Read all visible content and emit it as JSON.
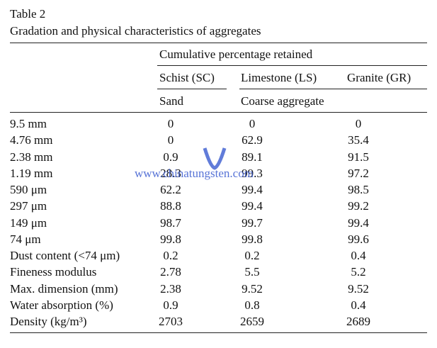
{
  "table": {
    "title": "Table 2",
    "caption": "Gradation and physical characteristics of aggregates",
    "group_header": "Cumulative percentage retained",
    "columns": [
      "Schist (SC)",
      "Limestone (LS)",
      "Granite (GR)"
    ],
    "subheaders": [
      "Sand",
      "Coarse aggregate"
    ],
    "rows": [
      {
        "label": "9.5 mm",
        "values": [
          0,
          0,
          0
        ]
      },
      {
        "label": "4.76 mm",
        "values": [
          0,
          62.9,
          35.4
        ]
      },
      {
        "label": "2.38 mm",
        "values": [
          0.9,
          89.1,
          91.5
        ]
      },
      {
        "label": "1.19 mm",
        "values": [
          28.3,
          99.3,
          97.2
        ]
      },
      {
        "label": "590 μm",
        "values": [
          62.2,
          99.4,
          98.5
        ]
      },
      {
        "label": "297 μm",
        "values": [
          88.8,
          99.4,
          99.2
        ]
      },
      {
        "label": "149 μm",
        "values": [
          98.7,
          99.7,
          99.4
        ]
      },
      {
        "label": "74 μm",
        "values": [
          99.8,
          99.8,
          99.6
        ]
      },
      {
        "label": "Dust content (<74 μm)",
        "values": [
          0.2,
          0.2,
          0.4
        ]
      },
      {
        "label": "Fineness modulus",
        "values": [
          2.78,
          5.5,
          5.2
        ]
      },
      {
        "label": "Max. dimension (mm)",
        "values": [
          2.38,
          9.52,
          9.52
        ]
      },
      {
        "label": "Water absorption (%)",
        "values": [
          0.9,
          0.8,
          0.4
        ]
      },
      {
        "label": "Density (kg/m³)",
        "values": [
          2703,
          2659,
          2689
        ]
      }
    ],
    "watermark": "www.chinatungsten.com"
  }
}
